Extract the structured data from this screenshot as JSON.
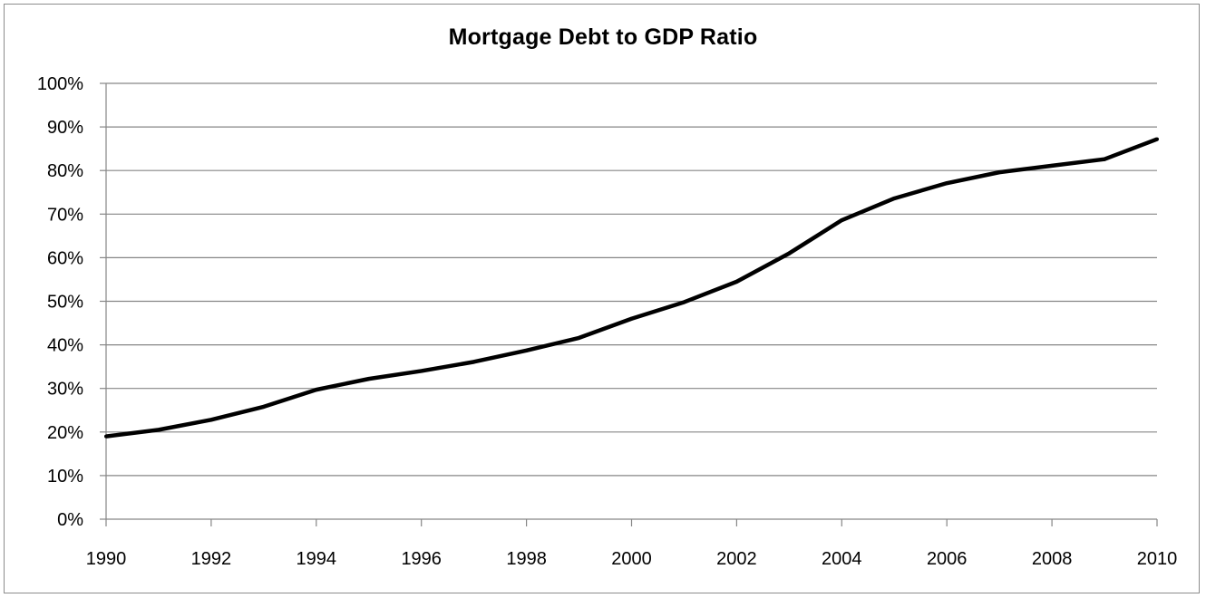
{
  "chart_data": {
    "type": "line",
    "title": "Mortgage Debt to GDP Ratio",
    "xlabel": "",
    "ylabel": "",
    "x": [
      1990,
      1991,
      1992,
      1993,
      1994,
      1995,
      1996,
      1997,
      1998,
      1999,
      2000,
      2001,
      2002,
      2003,
      2004,
      2005,
      2006,
      2007,
      2008,
      2009,
      2010
    ],
    "series": [
      {
        "values": [
          19,
          20.5,
          22.8,
          25.8,
          29.7,
          32.2,
          34,
          36.1,
          38.7,
          41.6,
          46,
          49.8,
          54.5,
          61,
          68.6,
          73.6,
          77.1,
          79.6,
          81.1,
          82.6,
          87.2
        ],
        "color": "#000000"
      }
    ],
    "xlim": [
      1990,
      2010
    ],
    "ylim": [
      0,
      100
    ],
    "x_ticks": [
      "1990",
      "1992",
      "1994",
      "1996",
      "1998",
      "2000",
      "2002",
      "2004",
      "2006",
      "2008",
      "2010"
    ],
    "y_ticks": [
      "0%",
      "10%",
      "20%",
      "30%",
      "40%",
      "50%",
      "60%",
      "70%",
      "80%",
      "90%",
      "100%"
    ],
    "grid": true,
    "legend": "none",
    "gridline_color": "#868686",
    "axis_color": "#868686"
  }
}
